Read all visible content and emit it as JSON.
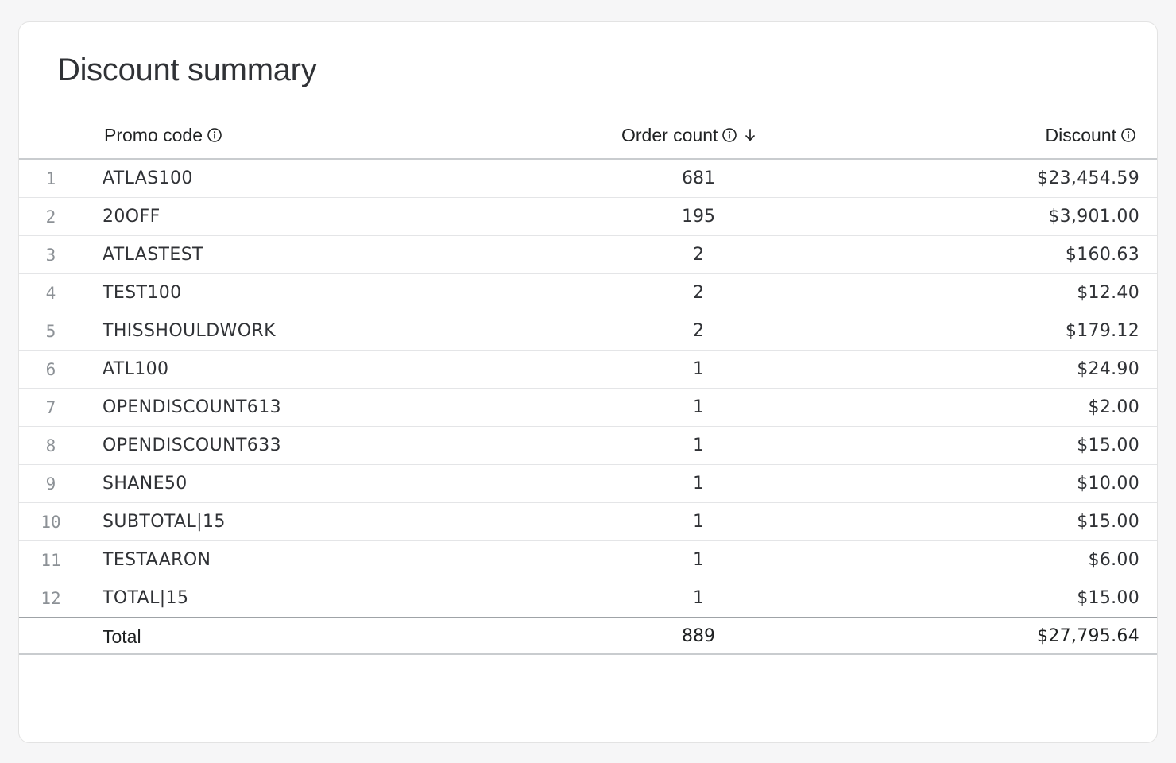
{
  "card": {
    "title": "Discount summary"
  },
  "table": {
    "columns": {
      "promo_code": "Promo code",
      "order_count": "Order count",
      "discount": "Discount"
    },
    "sort": {
      "column": "order_count",
      "direction": "descending"
    },
    "rows": [
      {
        "index": "1",
        "code": "ATLAS100",
        "count": "681",
        "discount": "$23,454.59"
      },
      {
        "index": "2",
        "code": "20OFF",
        "count": "195",
        "discount": "$3,901.00"
      },
      {
        "index": "3",
        "code": "ATLASTEST",
        "count": "2",
        "discount": "$160.63"
      },
      {
        "index": "4",
        "code": "TEST100",
        "count": "2",
        "discount": "$12.40"
      },
      {
        "index": "5",
        "code": "THISSHOULDWORK",
        "count": "2",
        "discount": "$179.12"
      },
      {
        "index": "6",
        "code": "ATL100",
        "count": "1",
        "discount": "$24.90"
      },
      {
        "index": "7",
        "code": "OPENDISCOUNT613",
        "count": "1",
        "discount": "$2.00"
      },
      {
        "index": "8",
        "code": "OPENDISCOUNT633",
        "count": "1",
        "discount": "$15.00"
      },
      {
        "index": "9",
        "code": "SHANE50",
        "count": "1",
        "discount": "$10.00"
      },
      {
        "index": "10",
        "code": "SUBTOTAL|15",
        "count": "1",
        "discount": "$15.00"
      },
      {
        "index": "11",
        "code": "TESTAARON",
        "count": "1",
        "discount": "$6.00"
      },
      {
        "index": "12",
        "code": "TOTAL|15",
        "count": "1",
        "discount": "$15.00"
      }
    ],
    "total": {
      "label": "Total",
      "count": "889",
      "discount": "$27,795.64"
    }
  },
  "icons": {
    "info": "info-circle-icon",
    "sort": "arrow-down-icon"
  }
}
